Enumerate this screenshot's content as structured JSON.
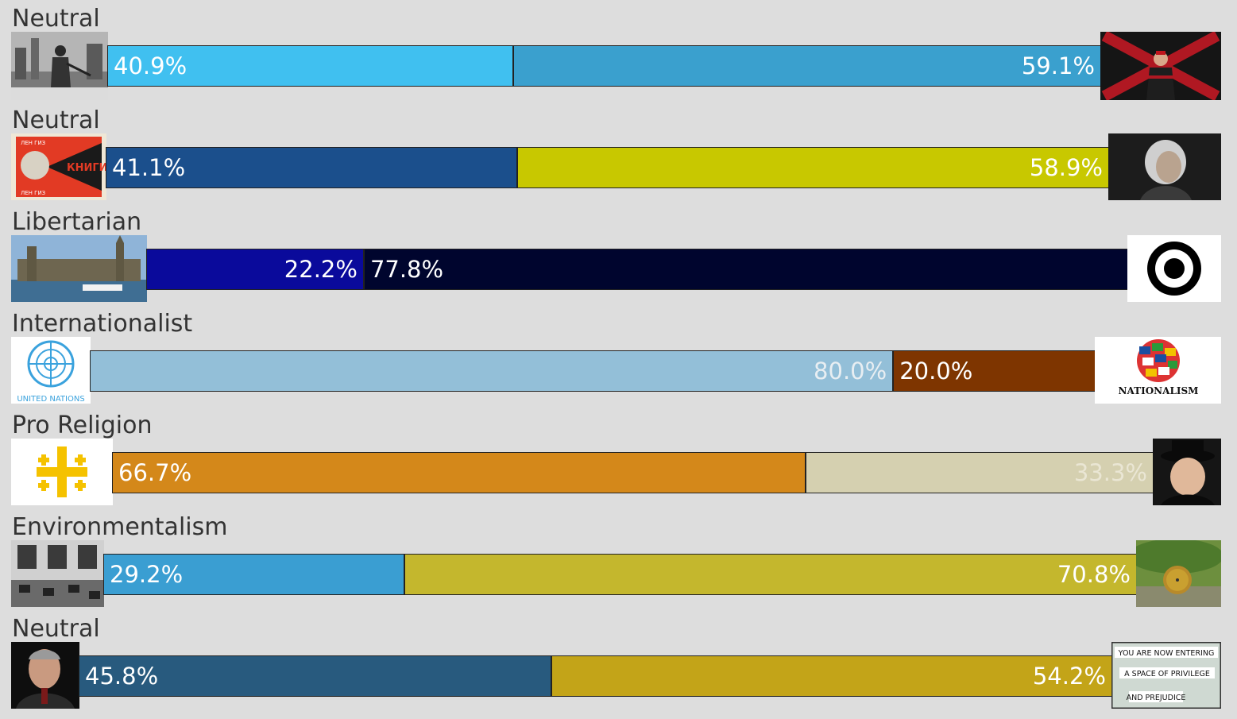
{
  "chart_data": {
    "type": "bar",
    "orientation": "horizontal-stacked",
    "axes": [
      {
        "title": "Neutral",
        "left_value": 40.9,
        "right_value": 59.1,
        "left_label": "40.9%",
        "right_label": "59.1%",
        "left_color": "#40c0f0",
        "right_color": "#3aa0ce",
        "left_text_color": "#ffffff",
        "right_text_color": "#ffffff",
        "left_icon": "militia-photo-icon",
        "right_icon": "burgundy-cross-flag-icon"
      },
      {
        "title": "Neutral",
        "left_value": 41.1,
        "right_value": 58.9,
        "left_label": "41.1%",
        "right_label": "58.9%",
        "left_color": "#1b4f8c",
        "right_color": "#c8c800",
        "left_text_color": "#ffffff",
        "right_text_color": "#ffffff",
        "left_icon": "constructivist-poster-icon",
        "right_icon": "adam-smith-portrait-icon"
      },
      {
        "title": "Libertarian",
        "left_value": 22.2,
        "right_value": 77.8,
        "left_label": "22.2%",
        "right_label": "77.8%",
        "left_color": "#0a0a9b",
        "right_color": "#00052e",
        "left_text_color": "#ffffff",
        "right_text_color": "#ffffff",
        "left_icon": "parliament-photo-icon",
        "right_icon": "circle-a-target-icon"
      },
      {
        "title": "Internationalist",
        "left_value": 80.0,
        "right_value": 20.0,
        "left_label": "80.0%",
        "right_label": "20.0%",
        "left_color": "#93bfd8",
        "right_color": "#7e3500",
        "left_text_color": "#e8eef2",
        "right_text_color": "#ffffff",
        "left_icon": "united-nations-logo-icon",
        "right_icon": "nationalism-globe-icon"
      },
      {
        "title": "Pro Religion",
        "left_value": 66.7,
        "right_value": 33.3,
        "left_label": "66.7%",
        "right_label": "33.3%",
        "left_color": "#d4881a",
        "right_color": "#d5d0b0",
        "left_text_color": "#ffffff",
        "right_text_color": "#eae6d4",
        "left_icon": "jerusalem-cross-icon",
        "right_icon": "fedora-man-photo-icon"
      },
      {
        "title": "Environmentalism",
        "left_value": 29.2,
        "right_value": 70.8,
        "left_label": "29.2%",
        "right_label": "70.8%",
        "left_color": "#3a9ed2",
        "right_color": "#c4b72d",
        "left_text_color": "#ffffff",
        "right_text_color": "#ffffff",
        "left_icon": "factory-hall-photo-icon",
        "right_icon": "hobbit-hole-photo-icon"
      },
      {
        "title": "Neutral",
        "left_value": 45.8,
        "right_value": 54.2,
        "left_label": "45.8%",
        "right_label": "54.2%",
        "left_color": "#285a7e",
        "right_color": "#c3a418",
        "left_text_color": "#ffffff",
        "right_text_color": "#ffffff",
        "left_icon": "man-portrait-photo-icon",
        "right_icon": "privilege-sign-photo-icon"
      }
    ]
  },
  "icon_text": {
    "poster_top": "ЛЕН ГИЗ",
    "poster_main": "КНИГИ",
    "poster_bottom": "ЛЕН ГИЗ",
    "un": "UNITED NATIONS",
    "nationalism": "NATIONALISM",
    "sign_line1": "YOU ARE NOW ENTERING",
    "sign_line2": "A SPACE OF PRIVILEGE",
    "sign_line3": "AND PREJUDICE"
  }
}
